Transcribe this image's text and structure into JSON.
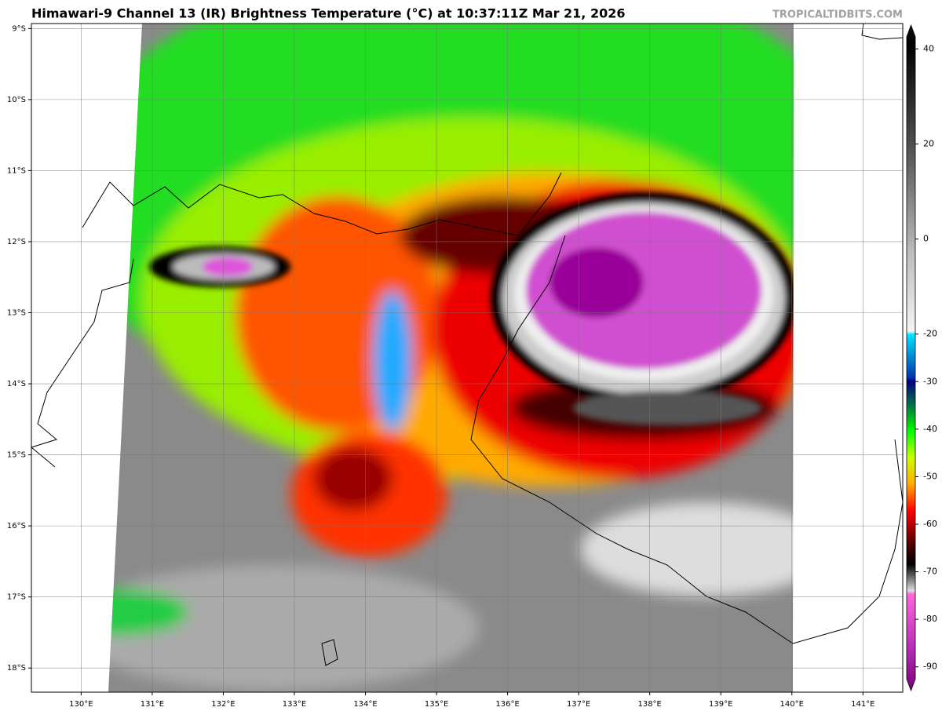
{
  "header": {
    "title": "Himawari-9 Channel 13 (IR) Brightness Temperature (°C) at 10:37:11Z Mar 21, 2026",
    "watermark": "TROPICALTIDBITS.COM"
  },
  "map": {
    "lon_lim": [
      129.3,
      141.56
    ],
    "lat_lim": [
      -8.93,
      -18.34
    ],
    "lon_ticks": [
      {
        "value": 130,
        "label": "130°E"
      },
      {
        "value": 131,
        "label": "131°E"
      },
      {
        "value": 132,
        "label": "132°E"
      },
      {
        "value": 133,
        "label": "133°E"
      },
      {
        "value": 134,
        "label": "134°E"
      },
      {
        "value": 135,
        "label": "135°E"
      },
      {
        "value": 136,
        "label": "136°E"
      },
      {
        "value": 137,
        "label": "137°E"
      },
      {
        "value": 138,
        "label": "138°E"
      },
      {
        "value": 139,
        "label": "139°E"
      },
      {
        "value": 140,
        "label": "140°E"
      },
      {
        "value": 141,
        "label": "141°E"
      }
    ],
    "lat_ticks": [
      {
        "value": -9,
        "label": "9°S"
      },
      {
        "value": -10,
        "label": "10°S"
      },
      {
        "value": -11,
        "label": "11°S"
      },
      {
        "value": -12,
        "label": "12°S"
      },
      {
        "value": -13,
        "label": "13°S"
      },
      {
        "value": -14,
        "label": "14°S"
      },
      {
        "value": -15,
        "label": "15°S"
      },
      {
        "value": -16,
        "label": "16°S"
      },
      {
        "value": -17,
        "label": "17°S"
      },
      {
        "value": -18,
        "label": "18°S"
      }
    ]
  },
  "colorbar": {
    "lim": [
      -95,
      45
    ],
    "ticks": [
      40,
      20,
      0,
      -20,
      -30,
      -40,
      -50,
      -60,
      -70,
      -80,
      -90
    ]
  }
}
